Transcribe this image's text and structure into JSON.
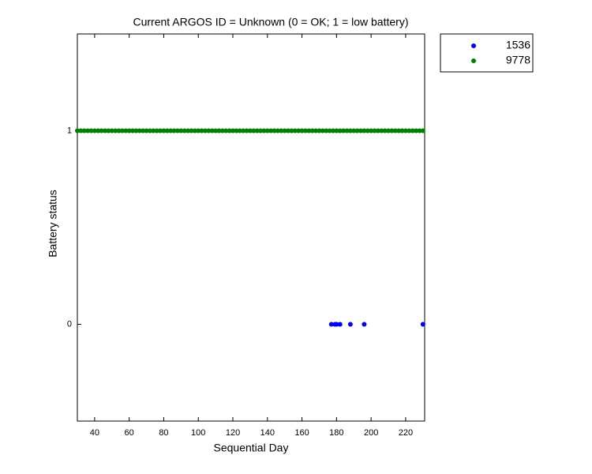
{
  "chart_data": {
    "type": "scatter",
    "title": "Current ARGOS ID = Unknown  (0 = OK; 1 = low battery)",
    "x_label": "Sequential Day",
    "y_label": "Battery status",
    "xlim": [
      30,
      231
    ],
    "ylim": [
      -0.5,
      1.5
    ],
    "xticks": [
      40,
      60,
      80,
      100,
      120,
      140,
      160,
      180,
      200,
      220
    ],
    "yticks": [
      0,
      1
    ],
    "legend": "outside-top-right",
    "series": [
      {
        "name": "1536",
        "color": "#0000ff",
        "x": [
          177,
          179,
          180,
          182,
          188,
          196,
          230
        ],
        "values": [
          0,
          0,
          0,
          0,
          0,
          0,
          0
        ]
      },
      {
        "name": "9778",
        "color": "#008000",
        "x": [
          30,
          32,
          34,
          36,
          38,
          40,
          42,
          44,
          46,
          48,
          50,
          52,
          54,
          56,
          58,
          60,
          62,
          64,
          66,
          68,
          70,
          72,
          74,
          76,
          78,
          80,
          82,
          84,
          86,
          88,
          90,
          92,
          94,
          96,
          98,
          100,
          102,
          104,
          106,
          108,
          110,
          112,
          114,
          116,
          118,
          120,
          122,
          124,
          126,
          128,
          130,
          132,
          134,
          136,
          138,
          140,
          142,
          144,
          146,
          148,
          150,
          152,
          154,
          156,
          158,
          160,
          162,
          164,
          166,
          168,
          170,
          172,
          174,
          176,
          178,
          180,
          182,
          184,
          186,
          188,
          190,
          192,
          194,
          196,
          198,
          200,
          202,
          204,
          206,
          208,
          210,
          212,
          214,
          216,
          218,
          220,
          222,
          224,
          226,
          228,
          230
        ],
        "values": [
          1,
          1,
          1,
          1,
          1,
          1,
          1,
          1,
          1,
          1,
          1,
          1,
          1,
          1,
          1,
          1,
          1,
          1,
          1,
          1,
          1,
          1,
          1,
          1,
          1,
          1,
          1,
          1,
          1,
          1,
          1,
          1,
          1,
          1,
          1,
          1,
          1,
          1,
          1,
          1,
          1,
          1,
          1,
          1,
          1,
          1,
          1,
          1,
          1,
          1,
          1,
          1,
          1,
          1,
          1,
          1,
          1,
          1,
          1,
          1,
          1,
          1,
          1,
          1,
          1,
          1,
          1,
          1,
          1,
          1,
          1,
          1,
          1,
          1,
          1,
          1,
          1,
          1,
          1,
          1,
          1,
          1,
          1,
          1,
          1,
          1,
          1,
          1,
          1,
          1,
          1,
          1,
          1,
          1,
          1,
          1,
          1,
          1,
          1,
          1,
          1
        ]
      }
    ]
  }
}
